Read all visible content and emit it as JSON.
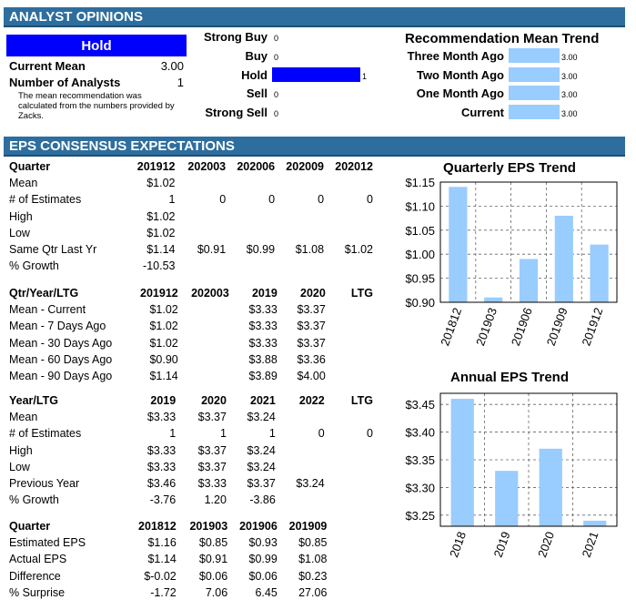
{
  "analyst": {
    "banner": "ANALYST OPINIONS",
    "rating": "Hold",
    "current_mean_label": "Current Mean",
    "current_mean": "3.00",
    "num_analysts_label": "Number of Analysts",
    "num_analysts": "1",
    "note": "The mean recommendation was calculated from the numbers provided by Zacks.",
    "ratings": [
      {
        "label": "Strong Buy",
        "count": "0",
        "value": 0
      },
      {
        "label": "Buy",
        "count": "0",
        "value": 0
      },
      {
        "label": "Hold",
        "count": "1",
        "value": 1
      },
      {
        "label": "Sell",
        "count": "0",
        "value": 0
      },
      {
        "label": "Strong Sell",
        "count": "0",
        "value": 0
      }
    ],
    "trend_title": "Recommendation Mean Trend",
    "trend": [
      {
        "label": "Three Month Ago",
        "value": "3.00"
      },
      {
        "label": "Two Month Ago",
        "value": "3.00"
      },
      {
        "label": "One Month Ago",
        "value": "3.00"
      },
      {
        "label": "Current",
        "value": "3.00"
      }
    ]
  },
  "eps": {
    "banner": "EPS CONSENSUS EXPECTATIONS",
    "table1": {
      "header": [
        "Quarter",
        "201912",
        "202003",
        "202006",
        "202009",
        "202012"
      ],
      "rows": [
        [
          "Mean",
          "$1.02",
          "",
          "",
          "",
          ""
        ],
        [
          "# of Estimates",
          "1",
          "0",
          "0",
          "0",
          "0"
        ],
        [
          "High",
          "$1.02",
          "",
          "",
          "",
          ""
        ],
        [
          "Low",
          "$1.02",
          "",
          "",
          "",
          ""
        ],
        [
          "Same Qtr Last Yr",
          "$1.14",
          "$0.91",
          "$0.99",
          "$1.08",
          "$1.02"
        ],
        [
          "% Growth",
          "-10.53",
          "",
          "",
          "",
          ""
        ]
      ]
    },
    "table2": {
      "header": [
        "Qtr/Year/LTG",
        "201912",
        "202003",
        "2019",
        "2020",
        "LTG"
      ],
      "rows": [
        [
          "Mean - Current",
          "$1.02",
          "",
          "$3.33",
          "$3.37",
          ""
        ],
        [
          "Mean - 7 Days Ago",
          "$1.02",
          "",
          "$3.33",
          "$3.37",
          ""
        ],
        [
          "Mean - 30 Days Ago",
          "$1.02",
          "",
          "$3.33",
          "$3.37",
          ""
        ],
        [
          "Mean - 60 Days Ago",
          "$0.90",
          "",
          "$3.88",
          "$3.36",
          ""
        ],
        [
          "Mean - 90 Days Ago",
          "$1.14",
          "",
          "$3.89",
          "$4.00",
          ""
        ]
      ]
    },
    "table3": {
      "header": [
        "Year/LTG",
        "2019",
        "2020",
        "2021",
        "2022",
        "LTG"
      ],
      "rows": [
        [
          "Mean",
          "$3.33",
          "$3.37",
          "$3.24",
          "",
          ""
        ],
        [
          "# of Estimates",
          "1",
          "1",
          "1",
          "0",
          "0"
        ],
        [
          "High",
          "$3.33",
          "$3.37",
          "$3.24",
          "",
          ""
        ],
        [
          "Low",
          "$3.33",
          "$3.37",
          "$3.24",
          "",
          ""
        ],
        [
          "Previous Year",
          "$3.46",
          "$3.33",
          "$3.37",
          "$3.24",
          ""
        ],
        [
          "% Growth",
          "-3.76",
          "1.20",
          "-3.86",
          "",
          ""
        ]
      ]
    },
    "table4": {
      "header": [
        "Quarter",
        "201812",
        "201903",
        "201906",
        "201909",
        ""
      ],
      "rows": [
        [
          "Estimated EPS",
          "$1.16",
          "$0.85",
          "$0.93",
          "$0.85",
          ""
        ],
        [
          "Actual EPS",
          "$1.14",
          "$0.91",
          "$0.99",
          "$1.08",
          ""
        ],
        [
          "Difference",
          "$-0.02",
          "$0.06",
          "$0.06",
          "$0.23",
          ""
        ],
        [
          "% Surprise",
          "-1.72",
          "7.06",
          "6.45",
          "27.06",
          ""
        ]
      ]
    }
  },
  "colors": {
    "banner": "#2e6e9e",
    "hold": "#0000ff",
    "bar": "#99ccff"
  },
  "chart_data": [
    {
      "type": "bar",
      "title": "Quarterly EPS Trend",
      "categories": [
        "201812",
        "201903",
        "201906",
        "201909",
        "201912"
      ],
      "values": [
        1.14,
        0.91,
        0.99,
        1.08,
        1.02
      ],
      "ylim": [
        0.9,
        1.15
      ],
      "yticks": [
        "$0.90",
        "$0.95",
        "$1.00",
        "$1.05",
        "$1.10",
        "$1.15"
      ],
      "grid": true
    },
    {
      "type": "bar",
      "title": "Annual EPS Trend",
      "categories": [
        "2018",
        "2019",
        "2020",
        "2021"
      ],
      "values": [
        3.46,
        3.33,
        3.37,
        3.24
      ],
      "ylim": [
        3.23,
        3.47
      ],
      "yticks": [
        "$3.25",
        "$3.30",
        "$3.35",
        "$3.40",
        "$3.45"
      ],
      "grid": true
    }
  ]
}
